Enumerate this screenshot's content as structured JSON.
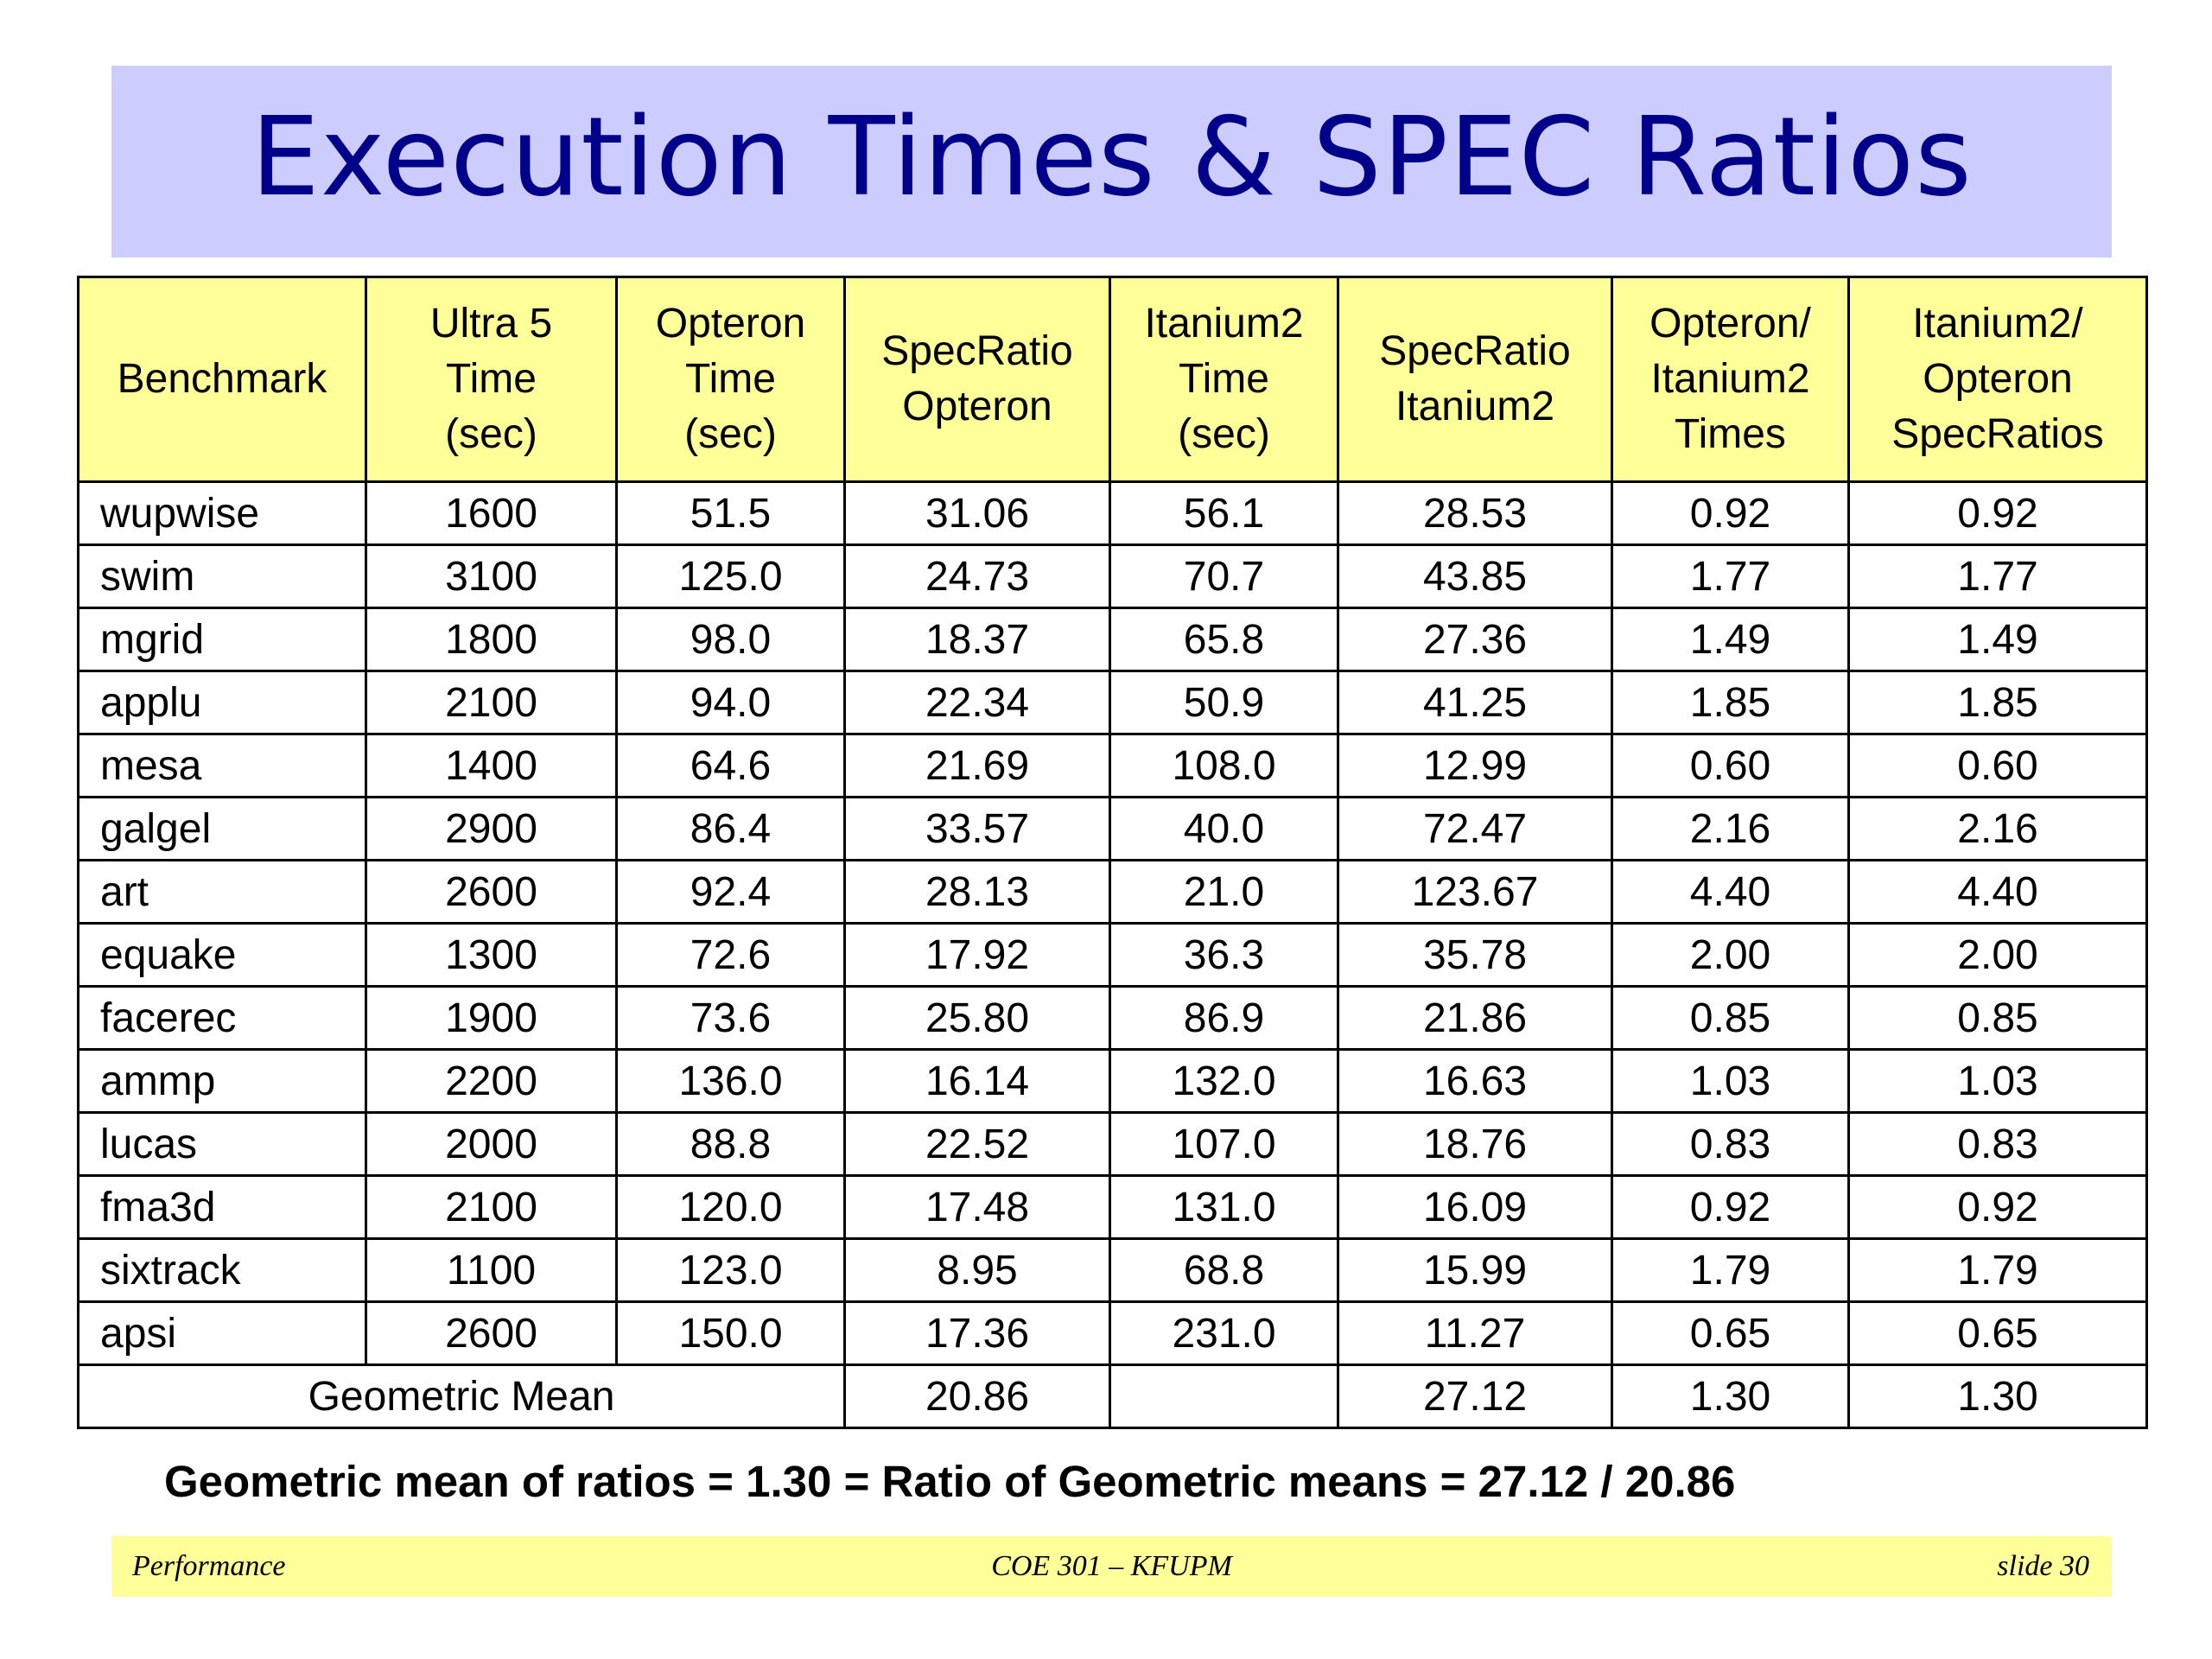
{
  "title": "Execution Times & SPEC Ratios",
  "table": {
    "headers": [
      [
        "Benchmark"
      ],
      [
        "Ultra 5",
        "Time",
        "(sec)"
      ],
      [
        "Opteron",
        "Time",
        "(sec)"
      ],
      [
        "SpecRatio",
        "Opteron"
      ],
      [
        "Itanium2",
        "Time",
        "(sec)"
      ],
      [
        "SpecRatio",
        "Itanium2"
      ],
      [
        "Opteron/",
        "Itanium2",
        "Times"
      ],
      [
        "Itanium2/",
        "Opteron",
        "SpecRatios"
      ]
    ],
    "rows": [
      [
        "wupwise",
        "1600",
        "51.5",
        "31.06",
        "56.1",
        "28.53",
        "0.92",
        "0.92"
      ],
      [
        "swim",
        "3100",
        "125.0",
        "24.73",
        "70.7",
        "43.85",
        "1.77",
        "1.77"
      ],
      [
        "mgrid",
        "1800",
        "98.0",
        "18.37",
        "65.8",
        "27.36",
        "1.49",
        "1.49"
      ],
      [
        "applu",
        "2100",
        "94.0",
        "22.34",
        "50.9",
        "41.25",
        "1.85",
        "1.85"
      ],
      [
        "mesa",
        "1400",
        "64.6",
        "21.69",
        "108.0",
        "12.99",
        "0.60",
        "0.60"
      ],
      [
        "galgel",
        "2900",
        "86.4",
        "33.57",
        "40.0",
        "72.47",
        "2.16",
        "2.16"
      ],
      [
        "art",
        "2600",
        "92.4",
        "28.13",
        "21.0",
        "123.67",
        "4.40",
        "4.40"
      ],
      [
        "equake",
        "1300",
        "72.6",
        "17.92",
        "36.3",
        "35.78",
        "2.00",
        "2.00"
      ],
      [
        "facerec",
        "1900",
        "73.6",
        "25.80",
        "86.9",
        "21.86",
        "0.85",
        "0.85"
      ],
      [
        "ammp",
        "2200",
        "136.0",
        "16.14",
        "132.0",
        "16.63",
        "1.03",
        "1.03"
      ],
      [
        "lucas",
        "2000",
        "88.8",
        "22.52",
        "107.0",
        "18.76",
        "0.83",
        "0.83"
      ],
      [
        "fma3d",
        "2100",
        "120.0",
        "17.48",
        "131.0",
        "16.09",
        "0.92",
        "0.92"
      ],
      [
        "sixtrack",
        "1100",
        "123.0",
        "8.95",
        "68.8",
        "15.99",
        "1.79",
        "1.79"
      ],
      [
        "apsi",
        "2600",
        "150.0",
        "17.36",
        "231.0",
        "11.27",
        "0.65",
        "0.65"
      ]
    ],
    "mean_row": {
      "label": "Geometric Mean",
      "specratio_opteron": "20.86",
      "itanium2_time": "",
      "specratio_itanium2": "27.12",
      "opteron_itanium2_times": "1.30",
      "itanium2_opteron_specratios": "1.30"
    }
  },
  "footnote": "Geometric mean of ratios = 1.30 = Ratio of Geometric means = 27.12 / 20.86",
  "footer": {
    "left": "Performance",
    "center": "COE 301 – KFUPM",
    "right": "slide 30"
  }
}
